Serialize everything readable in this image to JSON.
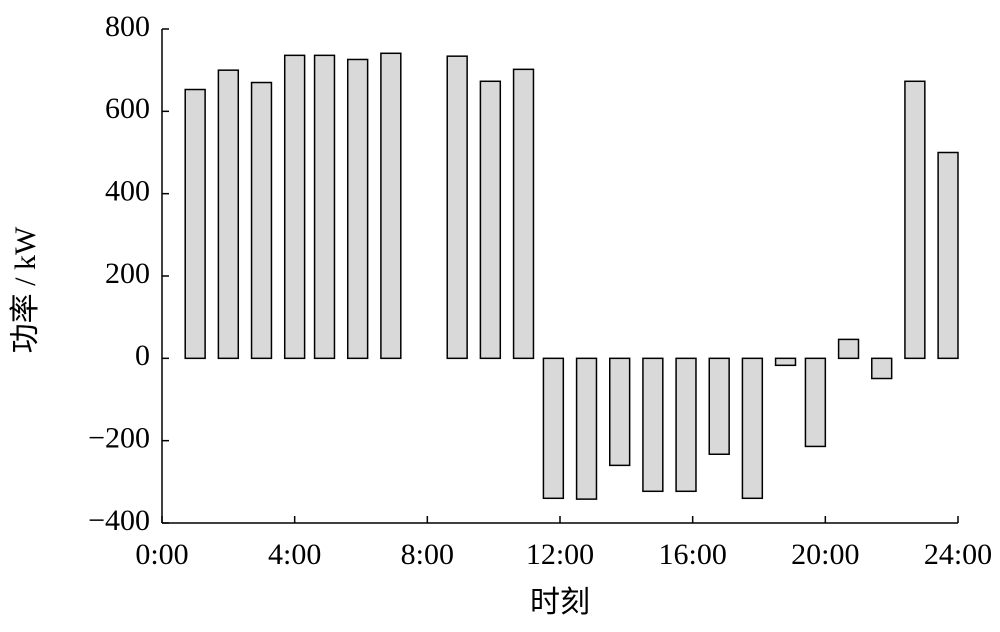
{
  "chart_data": {
    "type": "bar",
    "x_label": "时刻",
    "y_label": "功率 / kW",
    "x": [
      1.0,
      2.0,
      3.0,
      4.0,
      4.9,
      5.9,
      6.9,
      7.9,
      8.9,
      9.9,
      10.9,
      11.8,
      12.8,
      13.8,
      14.8,
      15.8,
      16.8,
      17.8,
      18.8,
      19.7,
      20.7,
      21.7,
      22.7,
      23.7
    ],
    "values": [
      653,
      700,
      670,
      736,
      736,
      726,
      741,
      0,
      734,
      673,
      702,
      -340,
      -342,
      -260,
      -323,
      -323,
      -233,
      -340,
      -17,
      -214,
      46,
      -49,
      673,
      500
    ],
    "color": "#d9d9d9",
    "xlim": [
      0,
      24
    ],
    "xticks": [
      {
        "value": 0,
        "label": "0:00"
      },
      {
        "value": 4,
        "label": "4:00"
      },
      {
        "value": 8,
        "label": "8:00"
      },
      {
        "value": 12,
        "label": "12:00"
      },
      {
        "value": 16,
        "label": "16:00"
      },
      {
        "value": 20,
        "label": "20:00"
      },
      {
        "value": 24,
        "label": "24:00"
      }
    ],
    "ylim": [
      -400,
      800
    ],
    "yticks": [
      {
        "value": -400,
        "label": "−400"
      },
      {
        "value": -200,
        "label": "−200"
      },
      0,
      200,
      400,
      600,
      800
    ],
    "grid": false
  }
}
